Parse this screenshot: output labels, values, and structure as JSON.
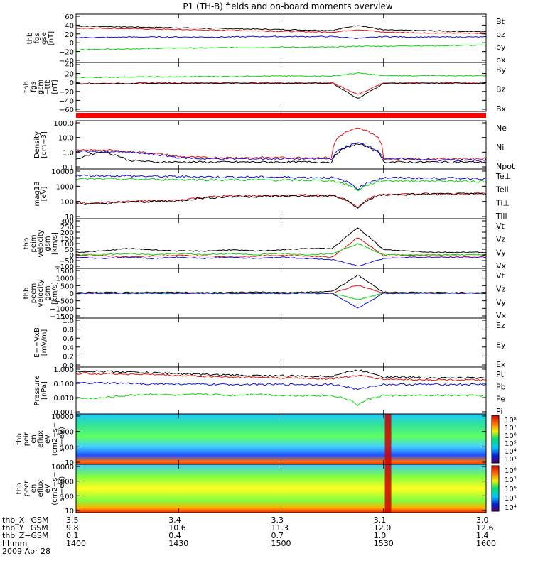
{
  "title": "P1 (TH-B) fields and on-board moments overview",
  "colors": {
    "black": "#000000",
    "red": "#e01010",
    "green": "#10d010",
    "blue": "#1010e0"
  },
  "chart_data": [
    {
      "type": "line",
      "id": "p1",
      "ylabel": [
        "thb",
        "fgs",
        "gse",
        "[nT]"
      ],
      "ticks": [
        "60",
        "40",
        "20",
        "0",
        "−20",
        "−40"
      ],
      "ylim": [
        -45,
        65
      ],
      "grid": false,
      "legend_placement": "right",
      "series": [
        {
          "name": "Bt",
          "color": "#000000",
          "values": [
            38,
            37,
            36,
            35,
            34,
            33,
            32,
            31,
            30,
            29,
            28,
            40,
            29,
            28,
            27,
            26,
            25
          ]
        },
        {
          "name": "bz",
          "color": "#e01010",
          "values": [
            33,
            33,
            32,
            31,
            30,
            29,
            28,
            27,
            26,
            25,
            24,
            30,
            24,
            23,
            22,
            22,
            21
          ]
        },
        {
          "name": "by",
          "color": "#10d010",
          "values": [
            -16,
            -15,
            -14,
            -13,
            -12,
            -12,
            -11,
            -11,
            -10,
            -10,
            -10,
            -8,
            -8,
            -7,
            -7,
            -6,
            -6
          ]
        },
        {
          "name": "bx",
          "color": "#1010e0",
          "values": [
            12,
            12,
            13,
            13,
            13,
            13,
            13,
            14,
            14,
            14,
            14,
            10,
            14,
            13,
            13,
            13,
            13
          ]
        }
      ]
    },
    {
      "type": "line",
      "id": "p2",
      "ylabel": [
        "thb",
        "fgs",
        "gsm",
        "−ttb",
        "[nT]"
      ],
      "ticks": [
        "40",
        "20",
        "0",
        "−20",
        "−40",
        "−60"
      ],
      "ylim": [
        -70,
        45
      ],
      "grid": false,
      "legend_placement": "right",
      "series": [
        {
          "name": "By",
          "color": "#10d010",
          "values": [
            10,
            10,
            11,
            11,
            11,
            12,
            12,
            13,
            13,
            13,
            13,
            20,
            14,
            14,
            14,
            14,
            14
          ]
        },
        {
          "name": "Bz",
          "color": "#e01010",
          "values": [
            -4,
            -4,
            -4,
            -3,
            -3,
            -3,
            -3,
            -3,
            -3,
            -3,
            -3,
            -30,
            -3,
            -3,
            -3,
            -3,
            -3
          ]
        },
        {
          "name": "Bx",
          "color": "#000000",
          "values": [
            -5,
            -5,
            -5,
            -4,
            -4,
            -4,
            -4,
            -4,
            -4,
            -4,
            -4,
            -40,
            -4,
            -4,
            -4,
            -4,
            -4
          ]
        }
      ]
    },
    {
      "type": "line",
      "id": "p3",
      "ylabel": [
        "Density",
        "[cm−3]"
      ],
      "ticks": [
        "100.0",
        "10.0",
        "1.0",
        "0.1"
      ],
      "ylim": [
        0.1,
        200
      ],
      "scale": "log",
      "legend_placement": "right",
      "series": [
        {
          "name": "Ne",
          "color": "#e01010",
          "values": [
            1.8,
            2,
            1.6,
            1.2,
            0.7,
            0.6,
            0.6,
            0.6,
            0.6,
            0.6,
            0.6,
            60,
            0.5,
            0.5,
            0.5,
            0.5,
            0.5
          ]
        },
        {
          "name": "Ni",
          "color": "#000000",
          "values": [
            0.4,
            1.5,
            0.4,
            0.3,
            0.3,
            0.3,
            0.3,
            0.3,
            0.3,
            0.3,
            0.3,
            5,
            0.3,
            0.3,
            0.3,
            0.3,
            0.3
          ]
        },
        {
          "name": "Npot",
          "color": "#1010e0",
          "values": [
            1.5,
            1.6,
            1.4,
            1.0,
            0.6,
            0.5,
            0.5,
            0.5,
            0.5,
            0.5,
            0.5,
            6,
            0.5,
            0.5,
            0.4,
            0.4,
            0.4
          ]
        }
      ]
    },
    {
      "type": "line",
      "id": "p4",
      "ylabel": [
        "mag13",
        "[eV]"
      ],
      "ticks": [
        "10000",
        "1000",
        "100",
        "10"
      ],
      "ylim": [
        10,
        10000
      ],
      "scale": "log",
      "legend_placement": "right",
      "series": [
        {
          "name": "Te⊥",
          "color": "#e01010",
          "values": [
            90,
            90,
            110,
            120,
            130,
            200,
            230,
            240,
            250,
            260,
            260,
            40,
            300,
            310,
            320,
            330,
            340
          ]
        },
        {
          "name": "Tell",
          "color": "#000000",
          "values": [
            80,
            80,
            100,
            110,
            120,
            180,
            210,
            220,
            230,
            240,
            240,
            35,
            280,
            290,
            300,
            310,
            320
          ]
        },
        {
          "name": "Ti⊥",
          "color": "#1010e0",
          "values": [
            4000,
            4000,
            3800,
            3600,
            3500,
            3400,
            3300,
            3300,
            3200,
            3100,
            3000,
            600,
            2900,
            2900,
            2800,
            2800,
            2700
          ]
        },
        {
          "name": "Till",
          "color": "#10d010",
          "values": [
            2500,
            2500,
            2400,
            2400,
            2300,
            2300,
            2200,
            2200,
            2100,
            2100,
            2000,
            500,
            2000,
            1900,
            1900,
            1800,
            1800
          ]
        }
      ]
    },
    {
      "type": "line",
      "id": "p5",
      "ylabel": [
        "thb",
        "peim",
        "velocity",
        "gsm",
        "[km/s]"
      ],
      "ticks": [
        "300",
        "250",
        "200",
        "150",
        "100",
        "50",
        "0",
        "−50",
        "−100"
      ],
      "ylim": [
        -100,
        300
      ],
      "legend_placement": "right",
      "series": [
        {
          "name": "Vt",
          "color": "#000000",
          "values": [
            30,
            40,
            60,
            50,
            40,
            40,
            50,
            40,
            50,
            60,
            60,
            230,
            50,
            40,
            30,
            30,
            30
          ]
        },
        {
          "name": "Vz",
          "color": "#e01010",
          "values": [
            0,
            5,
            -10,
            0,
            5,
            0,
            -10,
            0,
            5,
            0,
            -10,
            150,
            0,
            5,
            0,
            0,
            0
          ]
        },
        {
          "name": "Vy",
          "color": "#10d010",
          "values": [
            10,
            10,
            20,
            10,
            20,
            10,
            20,
            10,
            20,
            10,
            20,
            100,
            10,
            10,
            10,
            10,
            10
          ]
        },
        {
          "name": "Vx",
          "color": "#1010e0",
          "values": [
            -10,
            -20,
            -10,
            -20,
            -10,
            -20,
            -10,
            -20,
            -10,
            -20,
            -30,
            -80,
            -20,
            -10,
            -10,
            -10,
            -10
          ]
        }
      ]
    },
    {
      "type": "line",
      "id": "p6",
      "ylabel": [
        "thb",
        "peem",
        "velocity",
        "gsm",
        "[km/s]"
      ],
      "ticks": [
        "1500",
        "1000",
        "500",
        "0",
        "−500",
        "−1000",
        "−1500"
      ],
      "ylim": [
        -1500,
        1500
      ],
      "legend_placement": "right",
      "series": [
        {
          "name": "Vt",
          "color": "#000000",
          "values": [
            40,
            50,
            40,
            60,
            50,
            40,
            50,
            60,
            50,
            60,
            120,
            1100,
            60,
            50,
            40,
            40,
            40
          ]
        },
        {
          "name": "Vz",
          "color": "#e01010",
          "values": [
            0,
            10,
            -10,
            10,
            0,
            -10,
            10,
            0,
            -10,
            10,
            0,
            500,
            0,
            0,
            0,
            0,
            0
          ]
        },
        {
          "name": "Vy",
          "color": "#10d010",
          "values": [
            0,
            -10,
            10,
            0,
            -10,
            10,
            0,
            -10,
            10,
            0,
            -10,
            -400,
            0,
            0,
            0,
            0,
            0
          ]
        },
        {
          "name": "Vx",
          "color": "#1010e0",
          "values": [
            -10,
            0,
            -10,
            0,
            -10,
            0,
            -10,
            0,
            -10,
            0,
            -10,
            -900,
            0,
            0,
            0,
            0,
            0
          ]
        }
      ]
    },
    {
      "type": "line",
      "id": "p7",
      "ylabel": [
        "E=−VxB",
        "[mV/m]"
      ],
      "ticks": [
        "1.0",
        "0.8",
        "0.6",
        "0.4",
        "0.2",
        "0.0"
      ],
      "ylim": [
        0,
        1
      ],
      "legend_placement": "right",
      "series": [
        {
          "name": "Ez",
          "color": "#e01010",
          "values": []
        },
        {
          "name": "Ey",
          "color": "#10d010",
          "values": []
        },
        {
          "name": "Ex",
          "color": "#1010e0",
          "values": []
        }
      ]
    },
    {
      "type": "line",
      "id": "p8",
      "ylabel": [
        "Pressure",
        "[nPa]"
      ],
      "ticks": [
        "1.000",
        "0.100",
        "0.010",
        "0.001"
      ],
      "ylim": [
        0.001,
        2
      ],
      "scale": "log",
      "legend_placement": "right",
      "series": [
        {
          "name": "Pt",
          "color": "#000000",
          "values": [
            1.0,
            1.0,
            0.9,
            0.8,
            0.7,
            0.6,
            0.55,
            0.5,
            0.5,
            0.45,
            0.45,
            1.2,
            0.4,
            0.4,
            0.35,
            0.35,
            0.35
          ]
        },
        {
          "name": "Pb",
          "color": "#e01010",
          "values": [
            0.7,
            0.7,
            0.65,
            0.6,
            0.5,
            0.45,
            0.4,
            0.38,
            0.35,
            0.33,
            0.3,
            0.5,
            0.28,
            0.27,
            0.26,
            0.25,
            0.24
          ]
        },
        {
          "name": "Pe",
          "color": "#1010e0",
          "values": [
            0.15,
            0.15,
            0.14,
            0.13,
            0.13,
            0.12,
            0.12,
            0.12,
            0.12,
            0.12,
            0.12,
            0.05,
            0.12,
            0.12,
            0.12,
            0.12,
            0.12
          ]
        },
        {
          "name": "Pi",
          "color": "#10d010",
          "values": [
            0.012,
            0.013,
            0.02,
            0.025,
            0.02,
            0.025,
            0.02,
            0.025,
            0.02,
            0.02,
            0.02,
            0.004,
            0.02,
            0.02,
            0.02,
            0.02,
            0.02
          ]
        }
      ]
    },
    {
      "type": "heatmap",
      "id": "p9",
      "ylabel": [
        "thb",
        "peir",
        "en",
        "eflux",
        "eV",
        "(cm2−s−",
        "sr−eV)"
      ],
      "ticks": [
        "10000",
        "1000",
        "100",
        "10"
      ],
      "colorbar_ticks": [
        "10⁸",
        "10⁷",
        "10⁶",
        "10⁵",
        "10⁴",
        "10³"
      ]
    },
    {
      "type": "heatmap",
      "id": "p10",
      "ylabel": [
        "thb",
        "peer",
        "en",
        "eflux",
        "eV",
        "(cm2−s−",
        "sr−eV)"
      ],
      "ticks": [
        "10000",
        "1000",
        "100",
        "10"
      ],
      "colorbar_ticks": [
        "10⁸",
        "10⁷",
        "10⁶",
        "10⁵",
        "10⁴"
      ]
    }
  ],
  "time_axis": {
    "rows": [
      {
        "label": "thb_X−GSM",
        "values": [
          "3.5",
          "3.4",
          "3.3",
          "3.1",
          "3.0"
        ]
      },
      {
        "label": "thb_Y−GSM",
        "values": [
          "9.8",
          "10.6",
          "11.3",
          "12.0",
          "12.6"
        ]
      },
      {
        "label": "thb_Z−GSM",
        "values": [
          "0.1",
          "0.4",
          "0.7",
          "1.0",
          "1.4"
        ]
      },
      {
        "label": "hhmm",
        "values": [
          "1400",
          "1430",
          "1500",
          "1530",
          "1600"
        ]
      }
    ],
    "date": "2009 Apr 28"
  }
}
